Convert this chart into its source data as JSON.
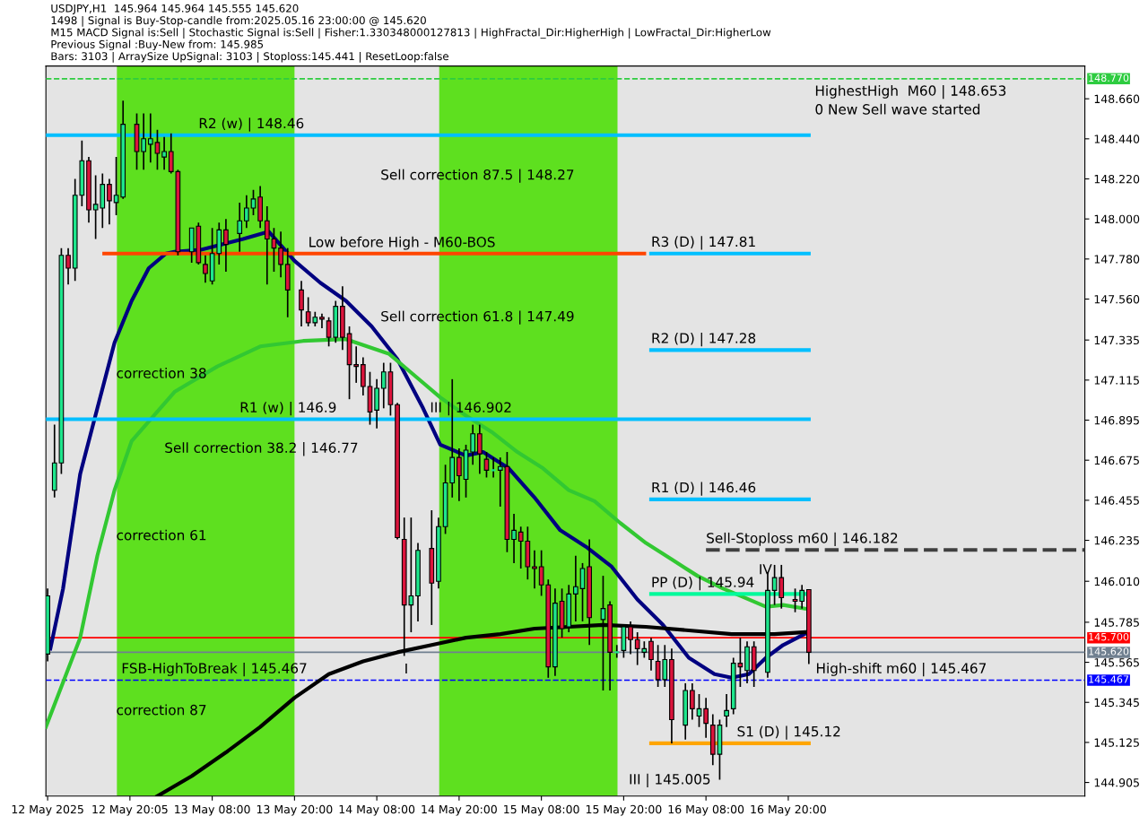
{
  "chart_data": {
    "type": "candlestick",
    "title": "USDJPY,H1  145.964 145.964 145.555 145.620",
    "x": [
      "2025-05-12T08:00",
      "2025-05-12T09:00",
      "2025-05-12T10:00",
      "2025-05-12T11:00",
      "2025-05-12T12:00",
      "2025-05-12T13:00",
      "2025-05-12T14:00",
      "2025-05-12T15:00",
      "2025-05-12T16:00",
      "2025-05-12T17:00",
      "2025-05-12T18:00",
      "2025-05-12T19:00",
      "2025-05-12T21:00",
      "2025-05-12T22:00",
      "2025-05-12T23:00",
      "2025-05-13T00:00",
      "2025-05-13T01:00",
      "2025-05-13T02:00",
      "2025-05-13T03:00",
      "2025-05-13T05:00",
      "2025-05-13T06:00",
      "2025-05-13T07:00",
      "2025-05-13T08:00",
      "2025-05-13T09:00",
      "2025-05-13T10:00",
      "2025-05-13T12:00",
      "2025-05-13T13:00",
      "2025-05-13T14:00",
      "2025-05-13T15:00",
      "2025-05-13T16:00",
      "2025-05-13T17:00",
      "2025-05-13T18:00",
      "2025-05-13T19:00",
      "2025-05-13T21:00",
      "2025-05-13T22:00",
      "2025-05-13T23:00",
      "2025-05-14T00:00",
      "2025-05-14T01:00",
      "2025-05-14T02:00",
      "2025-05-14T03:00",
      "2025-05-14T04:00",
      "2025-05-14T05:00",
      "2025-05-14T06:00",
      "2025-05-14T07:00",
      "2025-05-14T08:00",
      "2025-05-14T09:00",
      "2025-05-14T10:00",
      "2025-05-14T11:00",
      "2025-05-14T12:00",
      "2025-05-14T13:00",
      "2025-05-14T14:00",
      "2025-05-14T16:00",
      "2025-05-14T17:00",
      "2025-05-14T18:00",
      "2025-05-14T19:00",
      "2025-05-14T20:00",
      "2025-05-14T21:00",
      "2025-05-14T22:00",
      "2025-05-14T23:00",
      "2025-05-15T00:00",
      "2025-05-15T01:00",
      "2025-05-15T02:00",
      "2025-05-15T03:00",
      "2025-05-15T04:00",
      "2025-05-15T05:00",
      "2025-05-15T06:00",
      "2025-05-15T07:00",
      "2025-05-15T08:00",
      "2025-05-15T09:00",
      "2025-05-15T10:00",
      "2025-05-15T11:00",
      "2025-05-15T12:00",
      "2025-05-15T13:00",
      "2025-05-15T14:00",
      "2025-05-15T15:00",
      "2025-05-15T17:00",
      "2025-05-15T18:00",
      "2025-05-15T19:00",
      "2025-05-15T20:00",
      "2025-05-15T21:00",
      "2025-05-15T22:00",
      "2025-05-15T23:00",
      "2025-05-16T00:00",
      "2025-05-16T01:00",
      "2025-05-16T02:00",
      "2025-05-16T03:00",
      "2025-05-16T05:00",
      "2025-05-16T06:00",
      "2025-05-16T07:00",
      "2025-05-16T08:00",
      "2025-05-16T09:00",
      "2025-05-16T10:00",
      "2025-05-16T11:00",
      "2025-05-16T12:00",
      "2025-05-16T13:00",
      "2025-05-16T14:00",
      "2025-05-16T15:00",
      "2025-05-16T17:00",
      "2025-05-16T18:00",
      "2025-05-16T19:00",
      "2025-05-16T21:00",
      "2025-05-16T22:00",
      "2025-05-16T23:00"
    ],
    "ohlc": [
      [
        145.61,
        145.97,
        145.57,
        145.93
      ],
      [
        146.51,
        146.87,
        146.47,
        146.66
      ],
      [
        146.66,
        147.84,
        146.6,
        147.8
      ],
      [
        147.8,
        147.84,
        147.64,
        147.73
      ],
      [
        147.73,
        148.22,
        147.66,
        148.13
      ],
      [
        148.13,
        148.43,
        148.07,
        148.32
      ],
      [
        148.32,
        148.34,
        147.98,
        148.05
      ],
      [
        148.05,
        148.24,
        147.89,
        148.08
      ],
      [
        148.06,
        148.25,
        147.95,
        148.19
      ],
      [
        148.19,
        148.22,
        147.97,
        148.1
      ],
      [
        148.09,
        148.34,
        148.02,
        148.13
      ],
      [
        148.12,
        148.65,
        148.11,
        148.52
      ],
      [
        148.52,
        148.58,
        148.27,
        148.37
      ],
      [
        148.37,
        148.58,
        148.27,
        148.44
      ],
      [
        148.41,
        148.58,
        148.31,
        148.44
      ],
      [
        148.42,
        148.49,
        148.27,
        148.36
      ],
      [
        148.34,
        148.45,
        148.27,
        148.37
      ],
      [
        148.37,
        148.47,
        148.25,
        148.26
      ],
      [
        148.26,
        148.27,
        147.8,
        147.82
      ],
      [
        147.82,
        147.95,
        147.76,
        147.95
      ],
      [
        147.96,
        147.98,
        147.75,
        147.76
      ],
      [
        147.75,
        147.8,
        147.65,
        147.7
      ],
      [
        147.66,
        147.95,
        147.64,
        147.81
      ],
      [
        147.81,
        147.98,
        147.75,
        147.94
      ],
      [
        147.94,
        148.0,
        147.71,
        147.86
      ],
      [
        147.92,
        148.09,
        147.82,
        147.99
      ],
      [
        147.99,
        148.13,
        147.95,
        148.06
      ],
      [
        148.06,
        148.16,
        148.02,
        148.11
      ],
      [
        148.12,
        148.18,
        147.95,
        147.99
      ],
      [
        147.99,
        148.07,
        147.64,
        147.89
      ],
      [
        147.89,
        147.95,
        147.71,
        147.84
      ],
      [
        147.84,
        147.93,
        147.68,
        147.75
      ],
      [
        147.75,
        147.84,
        147.46,
        147.61
      ],
      [
        147.61,
        147.66,
        147.41,
        147.5
      ],
      [
        147.49,
        147.57,
        147.41,
        147.43
      ],
      [
        147.43,
        147.49,
        147.41,
        147.46
      ],
      [
        147.46,
        147.48,
        147.4,
        147.45
      ],
      [
        147.44,
        147.46,
        147.3,
        147.35
      ],
      [
        147.35,
        147.55,
        147.32,
        147.52
      ],
      [
        147.52,
        147.63,
        147.28,
        147.35
      ],
      [
        147.37,
        147.41,
        147.01,
        147.2
      ],
      [
        147.2,
        147.3,
        147.1,
        147.19
      ],
      [
        147.2,
        147.24,
        147.03,
        147.08
      ],
      [
        147.08,
        147.16,
        146.87,
        146.94
      ],
      [
        146.95,
        147.12,
        146.85,
        147.07
      ],
      [
        147.07,
        147.21,
        146.96,
        147.16
      ],
      [
        147.16,
        147.21,
        146.92,
        146.98
      ],
      [
        146.98,
        146.99,
        146.24,
        146.25
      ],
      [
        146.24,
        146.36,
        145.6,
        145.88
      ],
      [
        145.88,
        146.36,
        145.73,
        145.93
      ],
      [
        145.93,
        146.22,
        145.79,
        146.18
      ],
      [
        146.19,
        146.4,
        145.77,
        146.0
      ],
      [
        146.01,
        146.36,
        145.97,
        146.31
      ],
      [
        146.31,
        146.65,
        146.27,
        146.55
      ],
      [
        146.55,
        147.12,
        146.47,
        146.69
      ],
      [
        146.69,
        146.74,
        146.45,
        146.59
      ],
      [
        146.57,
        146.76,
        146.47,
        146.73
      ],
      [
        146.72,
        146.87,
        146.65,
        146.82
      ],
      [
        146.82,
        146.87,
        146.6,
        146.71
      ],
      [
        146.68,
        146.72,
        146.58,
        146.62
      ],
      [
        146.62,
        146.69,
        146.58,
        146.62
      ],
      [
        146.62,
        146.69,
        146.42,
        146.64
      ],
      [
        146.64,
        146.72,
        146.17,
        146.24
      ],
      [
        146.24,
        146.38,
        146.11,
        146.29
      ],
      [
        146.28,
        146.31,
        146.08,
        146.23
      ],
      [
        146.23,
        146.31,
        146.02,
        146.09
      ],
      [
        146.09,
        146.18,
        145.97,
        146.08
      ],
      [
        146.09,
        146.18,
        145.93,
        145.99
      ],
      [
        145.99,
        146.02,
        145.48,
        145.54
      ],
      [
        145.54,
        145.97,
        145.49,
        145.89
      ],
      [
        145.9,
        145.97,
        145.7,
        145.75
      ],
      [
        145.76,
        145.99,
        145.73,
        145.94
      ],
      [
        145.94,
        146.15,
        145.79,
        145.98
      ],
      [
        145.97,
        146.11,
        145.79,
        146.08
      ],
      [
        146.09,
        146.24,
        145.66,
        145.81
      ],
      [
        145.8,
        146.04,
        145.41,
        145.86
      ],
      [
        145.88,
        145.9,
        145.41,
        145.62
      ],
      [
        145.62,
        145.66,
        145.59,
        145.62
      ],
      [
        145.63,
        145.77,
        145.59,
        145.76
      ],
      [
        145.76,
        145.79,
        145.61,
        145.69
      ],
      [
        145.69,
        145.73,
        145.55,
        145.64
      ],
      [
        145.62,
        145.68,
        145.59,
        145.64
      ],
      [
        145.68,
        145.7,
        145.52,
        145.58
      ],
      [
        145.57,
        145.66,
        145.43,
        145.47
      ],
      [
        145.47,
        145.66,
        145.43,
        145.58
      ],
      [
        145.58,
        145.64,
        145.12,
        145.25
      ],
      [
        145.22,
        145.45,
        145.14,
        145.41
      ],
      [
        145.41,
        145.45,
        145.25,
        145.31
      ],
      [
        145.27,
        145.39,
        145.21,
        145.31
      ],
      [
        145.31,
        145.37,
        145.15,
        145.23
      ],
      [
        145.22,
        145.28,
        145.0,
        145.06
      ],
      [
        145.06,
        145.25,
        144.92,
        145.22
      ],
      [
        145.27,
        145.39,
        145.21,
        145.3
      ],
      [
        145.31,
        145.59,
        145.28,
        145.56
      ],
      [
        145.56,
        145.7,
        145.43,
        145.54
      ],
      [
        145.52,
        145.68,
        145.45,
        145.65
      ],
      [
        145.65,
        145.68,
        145.43,
        145.52
      ],
      [
        145.51,
        146.06,
        145.48,
        145.96
      ],
      [
        145.96,
        146.1,
        145.88,
        146.03
      ],
      [
        146.03,
        146.1,
        145.86,
        145.92
      ],
      [
        145.91,
        145.97,
        145.84,
        145.9
      ],
      [
        145.9,
        145.99,
        145.86,
        145.96
      ],
      [
        145.964,
        145.964,
        145.555,
        145.62
      ]
    ],
    "colors": [
      "#1ee68c",
      "#1ee68c",
      "#1ee68c",
      "#dc143c",
      "#1ee68c",
      "#1ee68c",
      "#dc143c",
      "#1ee68c",
      "#1ee68c",
      "#dc143c",
      "#1ee68c",
      "#1ee68c",
      "#dc143c",
      "#1ee68c",
      "#1ee68c",
      "#dc143c",
      "#1ee68c",
      "#dc143c",
      "#dc143c",
      "#1ee68c",
      "#dc143c",
      "#dc143c",
      "#1ee68c",
      "#1ee68c",
      "#dc143c",
      "#1ee68c",
      "#1ee68c",
      "#1ee68c",
      "#dc143c",
      "#dc143c",
      "#dc143c",
      "#dc143c",
      "#dc143c",
      "#dc143c",
      "#dc143c",
      "#1ee68c",
      "#dc143c",
      "#dc143c",
      "#1ee68c",
      "#dc143c",
      "#dc143c",
      "#dc143c",
      "#dc143c",
      "#dc143c",
      "#1ee68c",
      "#1ee68c",
      "#dc143c",
      "#dc143c",
      "#dc143c",
      "#1ee68c",
      "#1ee68c",
      "#dc143c",
      "#1ee68c",
      "#1ee68c",
      "#1ee68c",
      "#dc143c",
      "#1ee68c",
      "#1ee68c",
      "#dc143c",
      "#dc143c",
      "#1ee68c",
      "#1ee68c",
      "#dc143c",
      "#1ee68c",
      "#dc143c",
      "#dc143c",
      "#dc143c",
      "#dc143c",
      "#dc143c",
      "#1ee68c",
      "#dc143c",
      "#1ee68c",
      "#1ee68c",
      "#1ee68c",
      "#dc143c",
      "#1ee68c",
      "#dc143c",
      "#1ee68c",
      "#1ee68c",
      "#dc143c",
      "#dc143c",
      "#1ee68c",
      "#dc143c",
      "#dc143c",
      "#1ee68c",
      "#dc143c",
      "#1ee68c",
      "#dc143c",
      "#1ee68c",
      "#dc143c",
      "#dc143c",
      "#1ee68c",
      "#1ee68c",
      "#1ee68c",
      "#dc143c",
      "#1ee68c",
      "#dc143c",
      "#1ee68c",
      "#1ee68c",
      "#dc143c",
      "#dc143c",
      "#1ee68c",
      "#dc143c"
    ],
    "series": [
      {
        "type": "line",
        "color": "#000080",
        "x": [
          "2025-05-12T08:24",
          "2025-05-12T10:15",
          "2025-05-12T12:45",
          "2025-05-12T15:15",
          "2025-05-12T17:45",
          "2025-05-12T20:15",
          "2025-05-12T22:45",
          "2025-05-13T01:15",
          "2025-05-13T02:30",
          "2025-05-13T06:15",
          "2025-05-13T12:30",
          "2025-05-13T16:15",
          "2025-05-13T20:00",
          "2025-05-13T23:45",
          "2025-05-14T03:30",
          "2025-05-14T07:15",
          "2025-05-14T11:00",
          "2025-05-14T14:45",
          "2025-05-14T17:15",
          "2025-05-14T21:00",
          "2025-05-14T23:30",
          "2025-05-15T03:15",
          "2025-05-15T07:00",
          "2025-05-15T10:45",
          "2025-05-15T14:30",
          "2025-05-15T18:15",
          "2025-05-15T22:00",
          "2025-05-16T01:45",
          "2025-05-16T05:30",
          "2025-05-16T09:15",
          "2025-05-16T11:45",
          "2025-05-16T14:15",
          "2025-05-16T16:45",
          "2025-05-16T19:15",
          "2025-05-16T22:22"
        ],
        "values": [
          145.64,
          145.97,
          146.6,
          146.96,
          147.32,
          147.55,
          147.73,
          147.81,
          147.82,
          147.83,
          147.89,
          147.93,
          147.77,
          147.65,
          147.55,
          147.41,
          147.23,
          146.96,
          146.76,
          146.7,
          146.72,
          146.63,
          146.47,
          146.29,
          146.2,
          146.09,
          145.91,
          145.77,
          145.59,
          145.5,
          145.48,
          145.5,
          145.59,
          145.66,
          145.72
        ]
      },
      {
        "type": "line",
        "color": "#32c832",
        "x": [
          "2025-05-12T07:45",
          "2025-05-12T12:45",
          "2025-05-12T15:15",
          "2025-05-12T17:45",
          "2025-05-12T20:15",
          "2025-05-13T02:30",
          "2025-05-13T08:45",
          "2025-05-13T15:00",
          "2025-05-13T21:15",
          "2025-05-14T03:30",
          "2025-05-14T09:45",
          "2025-05-14T13:30",
          "2025-05-14T17:15",
          "2025-05-14T21:00",
          "2025-05-15T00:45",
          "2025-05-15T04:30",
          "2025-05-15T08:15",
          "2025-05-15T12:00",
          "2025-05-15T15:45",
          "2025-05-15T19:30",
          "2025-05-15T23:15",
          "2025-05-16T03:00",
          "2025-05-16T06:45",
          "2025-05-16T10:30",
          "2025-05-16T13:00",
          "2025-05-16T16:45",
          "2025-05-16T19:15",
          "2025-05-16T22:22"
        ],
        "values": [
          145.21,
          145.7,
          146.15,
          146.51,
          146.78,
          147.05,
          147.19,
          147.3,
          147.33,
          147.34,
          147.26,
          147.14,
          147.02,
          146.92,
          146.83,
          146.72,
          146.63,
          146.51,
          146.45,
          146.33,
          146.22,
          146.13,
          146.04,
          145.97,
          145.93,
          145.87,
          145.88,
          145.86
        ]
      },
      {
        "type": "line",
        "color": "#000000",
        "x": [
          "2025-05-13T00:00",
          "2025-05-13T05:00",
          "2025-05-13T10:00",
          "2025-05-13T15:00",
          "2025-05-13T20:00",
          "2025-05-14T01:00",
          "2025-05-14T06:00",
          "2025-05-14T11:00",
          "2025-05-14T16:00",
          "2025-05-14T21:00",
          "2025-05-15T02:00",
          "2025-05-15T07:00",
          "2025-05-15T12:00",
          "2025-05-15T17:00",
          "2025-05-15T23:15",
          "2025-05-16T05:30",
          "2025-05-16T11:45",
          "2025-05-16T18:00",
          "2025-05-16T22:22"
        ],
        "values": [
          144.83,
          144.94,
          145.07,
          145.21,
          145.37,
          145.5,
          145.57,
          145.62,
          145.66,
          145.7,
          145.72,
          145.75,
          145.76,
          145.77,
          145.76,
          145.74,
          145.72,
          145.72,
          145.73
        ]
      },
      {
        "type": "line",
        "color": "#00bfff",
        "x": [
          "2025-05-12T07:45",
          "2025-05-16T23:00"
        ],
        "values": [
          148.46,
          148.46
        ]
      },
      {
        "type": "line",
        "color": "#00bfff",
        "x": [
          "2025-05-12T07:45",
          "2025-05-16T23:00"
        ],
        "values": [
          146.9,
          146.9
        ]
      },
      {
        "type": "line",
        "color": "#00bfff",
        "x": [
          "2025-05-16T00:00",
          "2025-05-16T23:00"
        ],
        "values": [
          147.81,
          147.81
        ]
      },
      {
        "type": "line",
        "color": "#00bfff",
        "x": [
          "2025-05-16T00:00",
          "2025-05-16T23:00"
        ],
        "values": [
          147.28,
          147.28
        ]
      },
      {
        "type": "line",
        "color": "#00bfff",
        "x": [
          "2025-05-16T00:00",
          "2025-05-16T23:00"
        ],
        "values": [
          146.46,
          146.46
        ]
      },
      {
        "type": "line",
        "color": "#00fa9a",
        "x": [
          "2025-05-16T00:00",
          "2025-05-16T23:00"
        ],
        "values": [
          145.94,
          145.94
        ]
      },
      {
        "type": "line",
        "color": "#ffa500",
        "x": [
          "2025-05-16T00:00",
          "2025-05-16T23:00"
        ],
        "values": [
          145.12,
          145.12
        ]
      },
      {
        "type": "line",
        "color": "#ff4500",
        "x": [
          "2025-05-12T16:15",
          "2025-05-15T23:00"
        ],
        "values": [
          147.81,
          147.81
        ]
      },
      {
        "type": "line",
        "color": "#404040",
        "line_style": "dashed",
        "x": [
          "2025-05-16T08:00",
          "2025-05-18T15:15"
        ],
        "values": [
          146.182,
          146.182
        ]
      }
    ],
    "ref_lines": [
      {
        "axis": "y",
        "value": 148.77,
        "label": "148.770",
        "color": "#2ecc40",
        "line_style": "dashed"
      },
      {
        "axis": "y",
        "value": 145.7,
        "label": "145.700",
        "color": "#ff0000",
        "line_style": "solid"
      },
      {
        "axis": "y",
        "value": 145.62,
        "label": "145.620",
        "color": "#708090",
        "line_style": "solid"
      },
      {
        "axis": "y",
        "value": 145.467,
        "label": "145.467",
        "color": "#0000ff",
        "line_style": "dashed"
      }
    ],
    "bands": [
      {
        "axis": "x",
        "from": "2025-05-12T18:06",
        "to": "2025-05-13T20:00",
        "color": "#5ee01f"
      },
      {
        "axis": "x",
        "from": "2025-05-14T17:06",
        "to": "2025-05-15T19:06",
        "color": "#5ee01f"
      }
    ],
    "annotations": [
      "1498 | Signal is Buy-Stop-candle from:2025.05.16 23:00:00 @ 145.620",
      "M15 MACD Signal is:Sell | Stochastic Signal is:Sell | Fisher:1.330348000127813 | HighFractal_Dir:HigherHigh | LowFractal_Dir:HigherLow",
      "Previous Signal :Buy-New from: 145.985",
      "Bars: 3103 | ArraySize UpSignal: 3103 | Stoploss:145.441 | ResetLoop:false",
      "HighestHigh  M60 | 148.653",
      "0 New Sell wave started",
      "Sell correction 87.5 | 148.27",
      "Sell correction 61.8 | 147.49",
      "Sell correction 38.2 | 146.77",
      "III | 145.005",
      "IV",
      {
        "text": "R2 (w) | 148.46",
        "x": "2025-05-13T06:00",
        "y": 148.46
      },
      {
        "text": "R1 (w) | 146.9",
        "x": "2025-05-13T12:00",
        "y": 146.9
      },
      {
        "text": "R3 (D) | 147.81",
        "x": "2025-05-16T00:00",
        "y": 147.81
      },
      {
        "text": "R2 (D) | 147.28",
        "x": "2025-05-16T00:00",
        "y": 147.28
      },
      {
        "text": "R1 (D) | 146.46",
        "x": "2025-05-16T00:00",
        "y": 146.46
      },
      {
        "text": "PP (D) | 145.94",
        "x": "2025-05-16T00:00",
        "y": 145.94
      },
      {
        "text": "S1 (D) | 145.12",
        "x": "2025-05-16T12:30",
        "y": 145.12
      },
      {
        "text": "Sell-Stoploss m60 | 146.182",
        "x": "2025-05-16T08:00",
        "y": 146.182
      },
      {
        "text": "FSB-HighToBreak | 145.467",
        "x": "2025-05-12T18:45",
        "y": 145.467
      },
      {
        "text": "High-shift m60 | 145.467",
        "x": "2025-05-17T00:00",
        "y": 145.467
      },
      {
        "text": "Low before High - M60-BOS",
        "x": "2025-05-13T22:00",
        "y": 147.81
      },
      {
        "text": "III | 146.902",
        "x": "2025-05-14T15:45",
        "y": 146.9
      },
      {
        "text": "I",
        "x": "2025-05-14T12:00",
        "y": 145.467
      },
      {
        "text": "correction 38",
        "x": "2025-05-12T18:00",
        "y": 147.09
      },
      {
        "text": "correction 61",
        "x": "2025-05-12T18:00",
        "y": 146.2
      },
      {
        "text": "correction 87",
        "x": "2025-05-12T18:00",
        "y": 145.24
      }
    ],
    "xlim": [
      "2025-05-12T07:45",
      "2025-05-18T15:15"
    ],
    "ylim": [
      144.83,
      148.84
    ],
    "xticks": [
      {
        "value": "2025-05-12T08:00",
        "label": "12 May 2025"
      },
      {
        "value": "2025-05-12T20:00",
        "label": "12 May 20:05"
      },
      {
        "value": "2025-05-13T08:00",
        "label": "13 May 08:00"
      },
      {
        "value": "2025-05-13T20:00",
        "label": "13 May 20:00"
      },
      {
        "value": "2025-05-14T08:00",
        "label": "14 May 08:00"
      },
      {
        "value": "2025-05-14T20:00",
        "label": "14 May 20:00"
      },
      {
        "value": "2025-05-15T08:00",
        "label": "15 May 08:00"
      },
      {
        "value": "2025-05-15T20:00",
        "label": "15 May 20:00"
      },
      {
        "value": "2025-05-16T08:00",
        "label": "16 May 08:00"
      },
      {
        "value": "2025-05-16T20:00",
        "label": "16 May 20:00"
      }
    ],
    "yticks": [
      {
        "value": 148.66,
        "label": "148.660"
      },
      {
        "value": 148.44,
        "label": "148.440"
      },
      {
        "value": 148.22,
        "label": "148.220"
      },
      {
        "value": 148.0,
        "label": "148.000"
      },
      {
        "value": 147.78,
        "label": "147.780"
      },
      {
        "value": 147.56,
        "label": "147.560"
      },
      {
        "value": 147.335,
        "label": "147.335"
      },
      {
        "value": 147.115,
        "label": "147.115"
      },
      {
        "value": 146.895,
        "label": "146.895"
      },
      {
        "value": 146.675,
        "label": "146.675"
      },
      {
        "value": 146.455,
        "label": "146.455"
      },
      {
        "value": 146.235,
        "label": "146.235"
      },
      {
        "value": 146.01,
        "label": "146.010"
      },
      {
        "value": 145.785,
        "label": "145.785"
      },
      {
        "value": 145.565,
        "label": "145.565"
      },
      {
        "value": 145.345,
        "label": "145.345"
      },
      {
        "value": 145.125,
        "label": "145.125"
      },
      {
        "value": 144.905,
        "label": "144.905"
      }
    ],
    "grid": false
  }
}
